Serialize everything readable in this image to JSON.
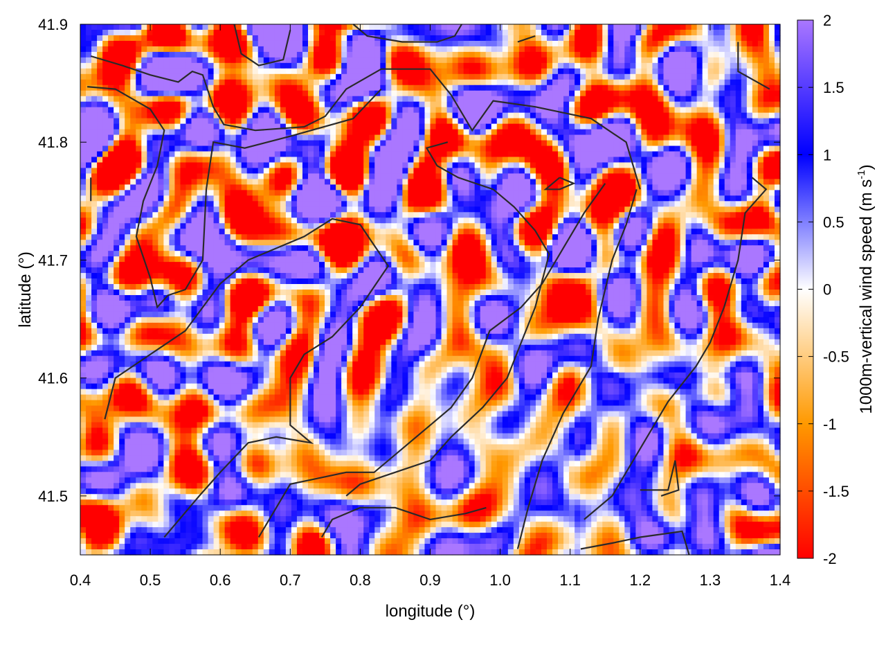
{
  "chart_data": {
    "type": "heatmap",
    "title": "",
    "xlabel": "longitude (°)",
    "ylabel": "latitude (°)",
    "xlim": [
      0.4,
      1.4
    ],
    "ylim": [
      41.45,
      41.9
    ],
    "x_ticks": [
      "0.4",
      "0.5",
      "0.6",
      "0.7",
      "0.8",
      "0.9",
      "1.0",
      "1.1",
      "1.2",
      "1.3",
      "1.4"
    ],
    "y_ticks": [
      "41.5",
      "41.6",
      "41.7",
      "41.8",
      "41.9"
    ],
    "colorbar": {
      "label_main": "1000m-vertical wind speed (m s",
      "label_sup": "-1",
      "label_end": ")",
      "range": [
        -2,
        2
      ],
      "ticks": [
        "2",
        "1.5",
        "1",
        "0.5",
        "0",
        "-0.5",
        "-1",
        "-1.5",
        "-2"
      ],
      "palette": [
        {
          "value": -2.0,
          "color": "#ff0000"
        },
        {
          "value": -1.0,
          "color": "#ff9900"
        },
        {
          "value": 0.0,
          "color": "#ffffff"
        },
        {
          "value": 1.0,
          "color": "#0000ff"
        },
        {
          "value": 2.0,
          "color": "#aa77ff"
        }
      ]
    },
    "field_description_note": null,
    "contours": [
      [
        [
          0.415,
          41.873
        ],
        [
          0.46,
          41.865
        ],
        [
          0.5,
          41.857
        ],
        [
          0.54,
          41.851
        ],
        [
          0.56,
          41.86
        ],
        [
          0.575,
          41.857
        ],
        [
          0.59,
          41.83
        ],
        [
          0.605,
          41.815
        ],
        [
          0.65,
          41.81
        ],
        [
          0.72,
          41.813
        ],
        [
          0.75,
          41.822
        ],
        [
          0.78,
          41.845
        ],
        [
          0.83,
          41.862
        ],
        [
          0.9,
          41.862
        ],
        [
          0.93,
          41.84
        ],
        [
          0.96,
          41.81
        ],
        [
          0.99,
          41.835
        ],
        [
          1.05,
          41.83
        ],
        [
          1.13,
          41.82
        ],
        [
          1.18,
          41.8
        ],
        [
          1.2,
          41.76
        ]
      ],
      [
        [
          0.41,
          41.847
        ],
        [
          0.45,
          41.845
        ],
        [
          0.5,
          41.828
        ],
        [
          0.52,
          41.81
        ],
        [
          0.51,
          41.78
        ],
        [
          0.49,
          41.75
        ],
        [
          0.48,
          41.72
        ],
        [
          0.5,
          41.685
        ],
        [
          0.51,
          41.66
        ],
        [
          0.525,
          41.67
        ],
        [
          0.55,
          41.675
        ],
        [
          0.575,
          41.7
        ],
        [
          0.58,
          41.76
        ],
        [
          0.59,
          41.8
        ],
        [
          0.635,
          41.795
        ],
        [
          0.7,
          41.805
        ],
        [
          0.79,
          41.82
        ],
        [
          0.83,
          41.845
        ]
      ],
      [
        [
          0.62,
          41.9
        ],
        [
          0.63,
          41.875
        ],
        [
          0.655,
          41.865
        ],
        [
          0.69,
          41.87
        ],
        [
          0.7,
          41.895
        ]
      ],
      [
        [
          0.79,
          41.9
        ],
        [
          0.81,
          41.89
        ],
        [
          0.86,
          41.885
        ],
        [
          0.91,
          41.885
        ],
        [
          0.935,
          41.89
        ],
        [
          0.945,
          41.9
        ]
      ],
      [
        [
          1.025,
          41.885
        ],
        [
          1.05,
          41.89
        ]
      ],
      [
        [
          0.925,
          41.8
        ],
        [
          0.895,
          41.795
        ],
        [
          0.91,
          41.78
        ],
        [
          0.94,
          41.77
        ],
        [
          0.99,
          41.76
        ],
        [
          1.02,
          41.745
        ],
        [
          1.05,
          41.725
        ],
        [
          1.07,
          41.705
        ],
        [
          1.05,
          41.66
        ],
        [
          1.03,
          41.63
        ],
        [
          1.01,
          41.6
        ],
        [
          0.975,
          41.575
        ],
        [
          0.93,
          41.55
        ],
        [
          0.9,
          41.53
        ],
        [
          0.85,
          41.52
        ],
        [
          0.8,
          41.51
        ],
        [
          0.78,
          41.5
        ]
      ],
      [
        [
          1.085,
          41.77
        ],
        [
          1.105,
          41.765
        ],
        [
          1.085,
          41.76
        ],
        [
          1.065,
          41.76
        ],
        [
          1.085,
          41.77
        ]
      ],
      [
        [
          1.195,
          41.76
        ],
        [
          1.18,
          41.73
        ],
        [
          1.16,
          41.7
        ],
        [
          1.14,
          41.65
        ],
        [
          1.13,
          41.61
        ],
        [
          1.09,
          41.57
        ],
        [
          1.06,
          41.53
        ],
        [
          1.04,
          41.49
        ],
        [
          1.025,
          41.455
        ]
      ],
      [
        [
          0.435,
          41.565
        ],
        [
          0.45,
          41.6
        ],
        [
          0.5,
          41.62
        ],
        [
          0.55,
          41.64
        ],
        [
          0.6,
          41.68
        ],
        [
          0.64,
          41.7
        ],
        [
          0.68,
          41.71
        ],
        [
          0.72,
          41.72
        ],
        [
          0.76,
          41.735
        ],
        [
          0.8,
          41.73
        ],
        [
          0.84,
          41.695
        ],
        [
          0.8,
          41.66
        ],
        [
          0.76,
          41.635
        ],
        [
          0.72,
          41.62
        ],
        [
          0.7,
          41.6
        ],
        [
          0.7,
          41.56
        ],
        [
          0.73,
          41.545
        ],
        [
          0.68,
          41.55
        ],
        [
          0.64,
          41.545
        ],
        [
          0.6,
          41.52
        ],
        [
          0.57,
          41.5
        ],
        [
          0.52,
          41.465
        ]
      ],
      [
        [
          0.655,
          41.465
        ],
        [
          0.68,
          41.49
        ],
        [
          0.7,
          41.51
        ],
        [
          0.74,
          41.515
        ],
        [
          0.78,
          41.52
        ],
        [
          0.82,
          41.52
        ],
        [
          0.86,
          41.54
        ],
        [
          0.9,
          41.56
        ],
        [
          0.93,
          41.575
        ],
        [
          0.96,
          41.6
        ],
        [
          0.985,
          41.64
        ],
        [
          1.03,
          41.66
        ],
        [
          1.06,
          41.68
        ],
        [
          1.09,
          41.71
        ],
        [
          1.12,
          41.74
        ],
        [
          1.15,
          41.765
        ]
      ],
      [
        [
          0.745,
          41.465
        ],
        [
          0.76,
          41.48
        ],
        [
          0.8,
          41.49
        ],
        [
          0.85,
          41.49
        ],
        [
          0.9,
          41.48
        ],
        [
          0.95,
          41.485
        ],
        [
          0.98,
          41.49
        ]
      ],
      [
        [
          1.115,
          41.455
        ],
        [
          1.16,
          41.46
        ],
        [
          1.2,
          41.465
        ],
        [
          1.26,
          41.47
        ],
        [
          1.27,
          41.45
        ]
      ],
      [
        [
          1.2,
          41.505
        ],
        [
          1.24,
          41.505
        ],
        [
          1.25,
          41.53
        ],
        [
          1.255,
          41.505
        ],
        [
          1.23,
          41.5
        ]
      ],
      [
        [
          1.36,
          41.77
        ],
        [
          1.38,
          41.76
        ],
        [
          1.35,
          41.74
        ],
        [
          1.34,
          41.7
        ],
        [
          1.32,
          41.66
        ],
        [
          1.3,
          41.63
        ],
        [
          1.28,
          41.61
        ],
        [
          1.24,
          41.58
        ],
        [
          1.2,
          41.54
        ],
        [
          1.16,
          41.5
        ],
        [
          1.12,
          41.48
        ]
      ],
      [
        [
          1.34,
          41.885
        ],
        [
          1.34,
          41.86
        ],
        [
          1.37,
          41.85
        ],
        [
          1.385,
          41.845
        ]
      ],
      [
        [
          0.415,
          41.77
        ],
        [
          0.415,
          41.75
        ]
      ]
    ]
  }
}
